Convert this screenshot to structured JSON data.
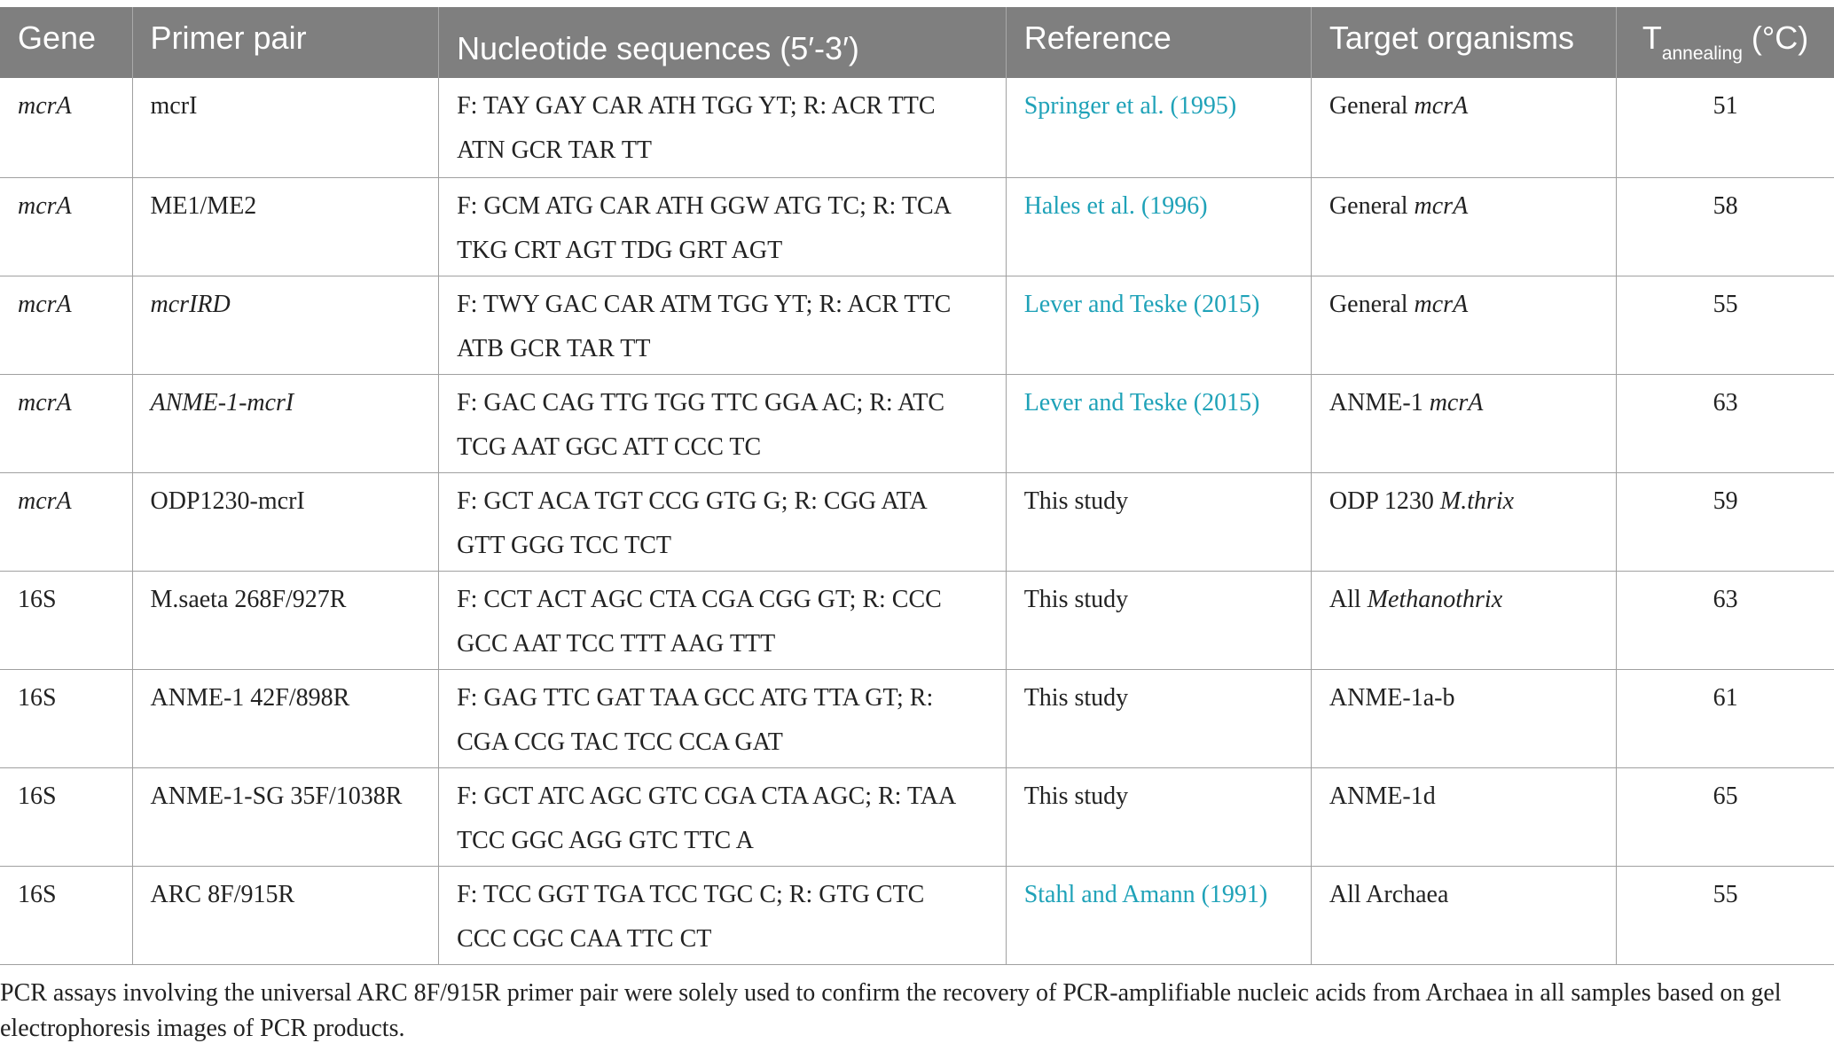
{
  "headers": {
    "gene": "Gene",
    "primer": "Primer pair",
    "sequence": "Nucleotide sequences (5′-3′)",
    "reference": "Reference",
    "target": "Target organisms",
    "temp_main": "T",
    "temp_sub": "annealing",
    "temp_unit": " (°C)"
  },
  "rows": [
    {
      "gene": "mcrA",
      "primer": "mcrI",
      "seq_line1": "F: TAY GAY CAR ATH TGG YT; R: ACR TTC",
      "seq_line2": "ATN GCR TAR TT",
      "reference": "Springer et al. (1995)",
      "target_a": "General ",
      "target_b": "mcrA",
      "temp": "51"
    },
    {
      "gene": "mcrA",
      "primer": "ME1/ME2",
      "seq_line1": "F: GCM ATG CAR ATH GGW ATG TC; R: TCA",
      "seq_line2": "TKG CRT AGT TDG GRT AGT",
      "reference": "Hales et al. (1996)",
      "target_a": "General ",
      "target_b": "mcrA",
      "temp": "58"
    },
    {
      "gene": "mcrA",
      "primer": "mcrIRD",
      "seq_line1": "F: TWY GAC CAR ATM TGG YT; R: ACR TTC",
      "seq_line2": "ATB GCR TAR TT",
      "reference": "Lever and Teske (2015)",
      "target_a": "General ",
      "target_b": "mcrA",
      "temp": "55"
    },
    {
      "gene": "mcrA",
      "primer": "ANME-1-mcrI",
      "seq_line1": "F: GAC CAG TTG TGG TTC GGA AC; R: ATC",
      "seq_line2": "TCG AAT GGC ATT CCC TC",
      "reference": "Lever and Teske (2015)",
      "target_a": "ANME-1 ",
      "target_b": "mcrA",
      "temp": "63"
    },
    {
      "gene": "mcrA",
      "primer": "ODP1230-mcrI",
      "seq_line1": "F: GCT ACA TGT CCG GTG G; R: CGG ATA",
      "seq_line2": "GTT GGG TCC TCT",
      "reference": "This study",
      "target_a": "ODP 1230 ",
      "target_b": "M.thrix",
      "temp": "59"
    },
    {
      "gene": "16S",
      "primer": "M.saeta 268F/927R",
      "seq_line1": "F: CCT ACT AGC CTA CGA CGG GT; R: CCC",
      "seq_line2": "GCC AAT TCC TTT AAG TTT",
      "reference": "This study",
      "target_a": "All ",
      "target_b": "Methanothrix",
      "temp": "63"
    },
    {
      "gene": "16S",
      "primer": "ANME-1 42F/898R",
      "seq_line1": "F: GAG TTC GAT TAA GCC ATG TTA GT; R:",
      "seq_line2": "CGA CCG TAC TCC CCA GAT",
      "reference": "This study",
      "target_a": "ANME-1a-b",
      "target_b": "",
      "temp": "61"
    },
    {
      "gene": "16S",
      "primer": "ANME-1-SG 35F/1038R",
      "seq_line1": "F: GCT ATC AGC GTC CGA CTA AGC; R: TAA",
      "seq_line2": "TCC GGC AGG GTC TTC A",
      "reference": "This study",
      "target_a": "ANME-1d",
      "target_b": "",
      "temp": "65"
    },
    {
      "gene": "16S",
      "primer": "ARC 8F/915R",
      "seq_line1": "F: TCC GGT TGA TCC TGC C; R: GTG CTC",
      "seq_line2": "CCC CGC CAA TTC CT",
      "reference": "Stahl and Amann (1991)",
      "target_a": "All Archaea",
      "target_b": "",
      "temp": "55"
    }
  ],
  "footnote": "PCR assays involving the universal ARC 8F/915R primer pair were solely used to confirm the recovery of PCR-amplifiable nucleic acids from Archaea in all samples based on gel electrophoresis images of PCR products.",
  "colors": {
    "header_bg": "#7f7f7f",
    "header_text": "#ffffff",
    "link": "#1fa2b8",
    "body_text": "#222222",
    "rule": "#a0a0a0"
  }
}
